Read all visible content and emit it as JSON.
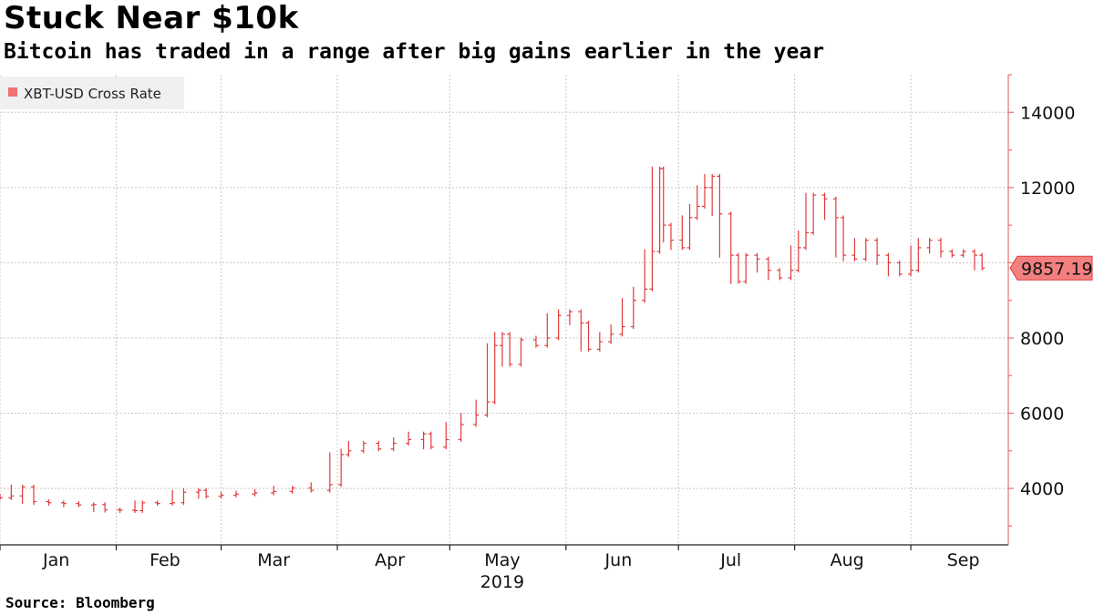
{
  "title": "Stuck Near $10k",
  "subtitle": "Bitcoin has traded in a range after big gains earlier in the year",
  "source": "Source: Bloomberg",
  "chart_data": {
    "type": "line",
    "style": "ohlc-bars",
    "series": [
      {
        "name": "XBT-USD Cross Rate",
        "color": "#e03b3b",
        "points": [
          {
            "d": "2019-01-01",
            "v": 3750
          },
          {
            "d": "2019-01-04",
            "v": 3800
          },
          {
            "d": "2019-01-07",
            "v": 4040
          },
          {
            "d": "2019-01-10",
            "v": 3650
          },
          {
            "d": "2019-01-14",
            "v": 3620
          },
          {
            "d": "2019-01-18",
            "v": 3600
          },
          {
            "d": "2019-01-22",
            "v": 3560
          },
          {
            "d": "2019-01-26",
            "v": 3570
          },
          {
            "d": "2019-01-29",
            "v": 3430
          },
          {
            "d": "2019-02-02",
            "v": 3420
          },
          {
            "d": "2019-02-06",
            "v": 3410
          },
          {
            "d": "2019-02-08",
            "v": 3620
          },
          {
            "d": "2019-02-12",
            "v": 3600
          },
          {
            "d": "2019-02-16",
            "v": 3620
          },
          {
            "d": "2019-02-19",
            "v": 3900
          },
          {
            "d": "2019-02-23",
            "v": 3950
          },
          {
            "d": "2019-02-25",
            "v": 3790
          },
          {
            "d": "2019-03-01",
            "v": 3820
          },
          {
            "d": "2019-03-05",
            "v": 3850
          },
          {
            "d": "2019-03-10",
            "v": 3880
          },
          {
            "d": "2019-03-15",
            "v": 3920
          },
          {
            "d": "2019-03-20",
            "v": 4010
          },
          {
            "d": "2019-03-25",
            "v": 3950
          },
          {
            "d": "2019-03-30",
            "v": 4100
          },
          {
            "d": "2019-04-02",
            "v": 4900
          },
          {
            "d": "2019-04-04",
            "v": 5000
          },
          {
            "d": "2019-04-08",
            "v": 5200
          },
          {
            "d": "2019-04-12",
            "v": 5050
          },
          {
            "d": "2019-04-16",
            "v": 5200
          },
          {
            "d": "2019-04-20",
            "v": 5300
          },
          {
            "d": "2019-04-24",
            "v": 5450
          },
          {
            "d": "2019-04-26",
            "v": 5100
          },
          {
            "d": "2019-04-30",
            "v": 5300
          },
          {
            "d": "2019-05-04",
            "v": 5700
          },
          {
            "d": "2019-05-08",
            "v": 5950
          },
          {
            "d": "2019-05-11",
            "v": 6300
          },
          {
            "d": "2019-05-13",
            "v": 7800
          },
          {
            "d": "2019-05-15",
            "v": 8100
          },
          {
            "d": "2019-05-17",
            "v": 7300
          },
          {
            "d": "2019-05-20",
            "v": 7950
          },
          {
            "d": "2019-05-24",
            "v": 7800
          },
          {
            "d": "2019-05-27",
            "v": 8000
          },
          {
            "d": "2019-05-30",
            "v": 8600
          },
          {
            "d": "2019-06-02",
            "v": 8700
          },
          {
            "d": "2019-06-05",
            "v": 8400
          },
          {
            "d": "2019-06-07",
            "v": 7700
          },
          {
            "d": "2019-06-10",
            "v": 7900
          },
          {
            "d": "2019-06-13",
            "v": 8100
          },
          {
            "d": "2019-06-16",
            "v": 8300
          },
          {
            "d": "2019-06-19",
            "v": 9000
          },
          {
            "d": "2019-06-22",
            "v": 9300
          },
          {
            "d": "2019-06-24",
            "v": 10300
          },
          {
            "d": "2019-06-26",
            "v": 12500
          },
          {
            "d": "2019-06-27",
            "v": 11000
          },
          {
            "d": "2019-06-29",
            "v": 10600
          },
          {
            "d": "2019-07-02",
            "v": 10400
          },
          {
            "d": "2019-07-04",
            "v": 11200
          },
          {
            "d": "2019-07-06",
            "v": 11500
          },
          {
            "d": "2019-07-08",
            "v": 12000
          },
          {
            "d": "2019-07-10",
            "v": 12300
          },
          {
            "d": "2019-07-12",
            "v": 11300
          },
          {
            "d": "2019-07-15",
            "v": 10200
          },
          {
            "d": "2019-07-17",
            "v": 9500
          },
          {
            "d": "2019-07-19",
            "v": 10200
          },
          {
            "d": "2019-07-22",
            "v": 10100
          },
          {
            "d": "2019-07-25",
            "v": 9800
          },
          {
            "d": "2019-07-28",
            "v": 9600
          },
          {
            "d": "2019-07-31",
            "v": 9800
          },
          {
            "d": "2019-08-02",
            "v": 10400
          },
          {
            "d": "2019-08-04",
            "v": 10800
          },
          {
            "d": "2019-08-06",
            "v": 11800
          },
          {
            "d": "2019-08-09",
            "v": 11700
          },
          {
            "d": "2019-08-12",
            "v": 11200
          },
          {
            "d": "2019-08-14",
            "v": 10200
          },
          {
            "d": "2019-08-17",
            "v": 10100
          },
          {
            "d": "2019-08-20",
            "v": 10600
          },
          {
            "d": "2019-08-23",
            "v": 10200
          },
          {
            "d": "2019-08-26",
            "v": 10000
          },
          {
            "d": "2019-08-29",
            "v": 9700
          },
          {
            "d": "2019-09-01",
            "v": 9800
          },
          {
            "d": "2019-09-03",
            "v": 10400
          },
          {
            "d": "2019-09-06",
            "v": 10600
          },
          {
            "d": "2019-09-09",
            "v": 10300
          },
          {
            "d": "2019-09-12",
            "v": 10200
          },
          {
            "d": "2019-09-15",
            "v": 10300
          },
          {
            "d": "2019-09-18",
            "v": 10200
          },
          {
            "d": "2019-09-20",
            "v": 9857.19
          }
        ]
      }
    ],
    "x": {
      "start": "2019-01-01",
      "end": "2019-09-27",
      "tick_labels": [
        "Jan",
        "Feb",
        "Mar",
        "Apr",
        "May",
        "Jun",
        "Jul",
        "Aug",
        "Sep"
      ],
      "tick_dates": [
        "2019-01-16",
        "2019-02-14",
        "2019-03-15",
        "2019-04-15",
        "2019-05-15",
        "2019-06-15",
        "2019-07-15",
        "2019-08-15",
        "2019-09-15"
      ],
      "grid_dates": [
        "2019-01-01",
        "2019-02-01",
        "2019-03-01",
        "2019-04-01",
        "2019-05-01",
        "2019-06-01",
        "2019-07-01",
        "2019-08-01",
        "2019-09-01"
      ],
      "year_label": "2019"
    },
    "y": {
      "ylim": [
        2500,
        15000
      ],
      "ticks": [
        4000,
        6000,
        8000,
        10000,
        12000,
        14000
      ],
      "tick_labels": [
        "4000",
        "6000",
        "8000",
        "10000",
        "12000",
        "14000"
      ],
      "position": "right"
    },
    "last_value_label": "9857.19",
    "grid": true,
    "legend_position": "top-left"
  }
}
